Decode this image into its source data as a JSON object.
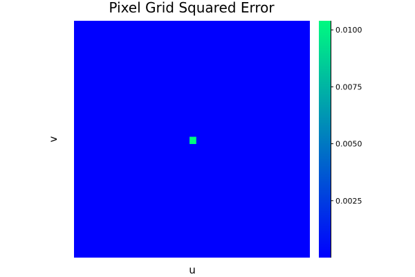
{
  "chart_data": {
    "type": "heatmap",
    "title": "Pixel Grid Squared Error",
    "xlabel": "u",
    "ylabel": "v",
    "grid": false,
    "x_ticks": false,
    "y_ticks": false,
    "grid_size": [
      49,
      49
    ],
    "background_value": 0.0,
    "hot_pixel": {
      "col": 24,
      "row": 24,
      "value": 0.0104
    },
    "colorbar": {
      "min": 0.0,
      "max": 0.0104,
      "ticks": [
        0.0025,
        0.005,
        0.0075,
        0.01
      ],
      "tick_labels": [
        "0.0025",
        "0.0050",
        "0.0075",
        "0.0100"
      ],
      "color_low": "#0000ff",
      "color_high": "#00fa80"
    }
  }
}
